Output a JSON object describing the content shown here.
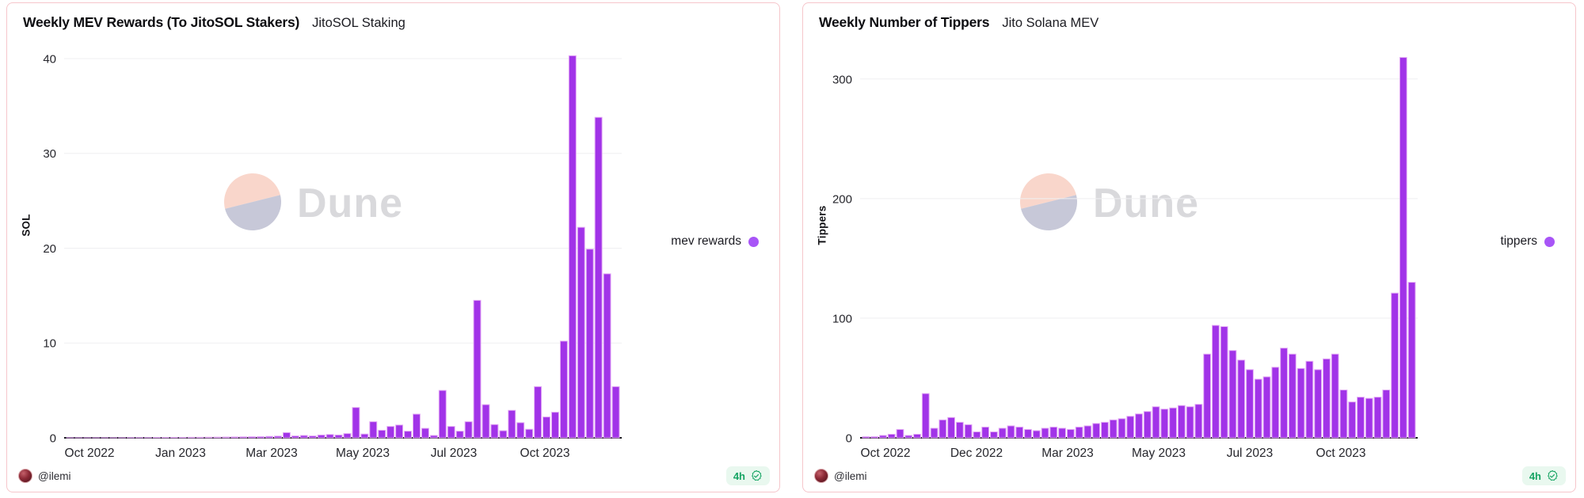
{
  "chart_data": [
    {
      "type": "bar",
      "title": "Weekly MEV Rewards (To JitoSOL Stakers)",
      "subtitle": "JitoSOL Staking",
      "ylabel": "SOL",
      "yticks": [
        0,
        10,
        20,
        30,
        40
      ],
      "ylim": [
        0,
        41
      ],
      "xticklabels": [
        "Oct 2022",
        "Jan 2023",
        "Mar 2023",
        "May 2023",
        "Jul 2023",
        "Oct 2023"
      ],
      "legend_label": "mev rewards",
      "grid": "horizontal",
      "legend_position": "right-middle",
      "x_note": "weekly bars, Oct 2022 through Dec 2023",
      "values": [
        0.01,
        0.01,
        0.01,
        0.01,
        0.02,
        0.02,
        0.02,
        0.03,
        0.03,
        0.03,
        0.04,
        0.04,
        0.05,
        0.05,
        0.06,
        0.06,
        0.07,
        0.08,
        0.09,
        0.1,
        0.11,
        0.12,
        0.13,
        0.15,
        0.18,
        0.55,
        0.2,
        0.25,
        0.2,
        0.3,
        0.35,
        0.3,
        0.45,
        3.2,
        0.4,
        1.7,
        0.8,
        1.2,
        1.35,
        0.7,
        2.5,
        1.0,
        0.25,
        5.0,
        1.2,
        0.7,
        1.7,
        14.5,
        3.5,
        1.4,
        0.75,
        2.9,
        1.6,
        0.9,
        5.4,
        2.2,
        2.7,
        10.2,
        40.3,
        22.2,
        19.9,
        33.8,
        17.3,
        5.4
      ]
    },
    {
      "type": "bar",
      "title": "Weekly Number of Tippers",
      "subtitle": "Jito Solana MEV",
      "ylabel": "Tippers",
      "yticks": [
        0,
        100,
        200,
        300
      ],
      "ylim": [
        0,
        325
      ],
      "xticklabels": [
        "Oct 2022",
        "Dec 2022",
        "Mar 2023",
        "May 2023",
        "Jul 2023",
        "Oct 2023"
      ],
      "legend_label": "tippers",
      "grid": "horizontal",
      "legend_position": "right-middle",
      "x_note": "weekly bars, Oct 2022 through Dec 2023",
      "values": [
        1,
        1,
        2,
        3,
        7,
        2,
        3,
        37,
        8,
        15,
        17,
        13,
        11,
        5,
        9,
        5,
        8,
        10,
        9,
        7,
        6,
        8,
        9,
        8,
        7,
        9,
        10,
        12,
        13,
        15,
        16,
        18,
        20,
        22,
        26,
        24,
        25,
        27,
        26,
        28,
        70,
        94,
        93,
        73,
        65,
        57,
        49,
        51,
        59,
        75,
        70,
        58,
        64,
        57,
        66,
        70,
        40,
        30,
        34,
        33,
        34,
        40,
        121,
        318,
        130
      ]
    }
  ],
  "watermark": {
    "text": "Dune"
  },
  "footer": {
    "author": "@ilemi",
    "badge_time": "4h"
  },
  "colors": {
    "bar_fill": "#a133e8",
    "bar_stroke": "#e3aaf5",
    "legend_dot": "#a855f7",
    "grid_line": "#efeff1",
    "axis_line": "#17171c",
    "tick_text": "#26262c",
    "badge_text": "#16a463",
    "badge_bg": "#e9f8ef",
    "card_border": "#f6c6cb",
    "watermark_top": "#f9d6cb",
    "watermark_bottom": "#c7c8d8",
    "watermark_text": "#d9d9dc"
  }
}
